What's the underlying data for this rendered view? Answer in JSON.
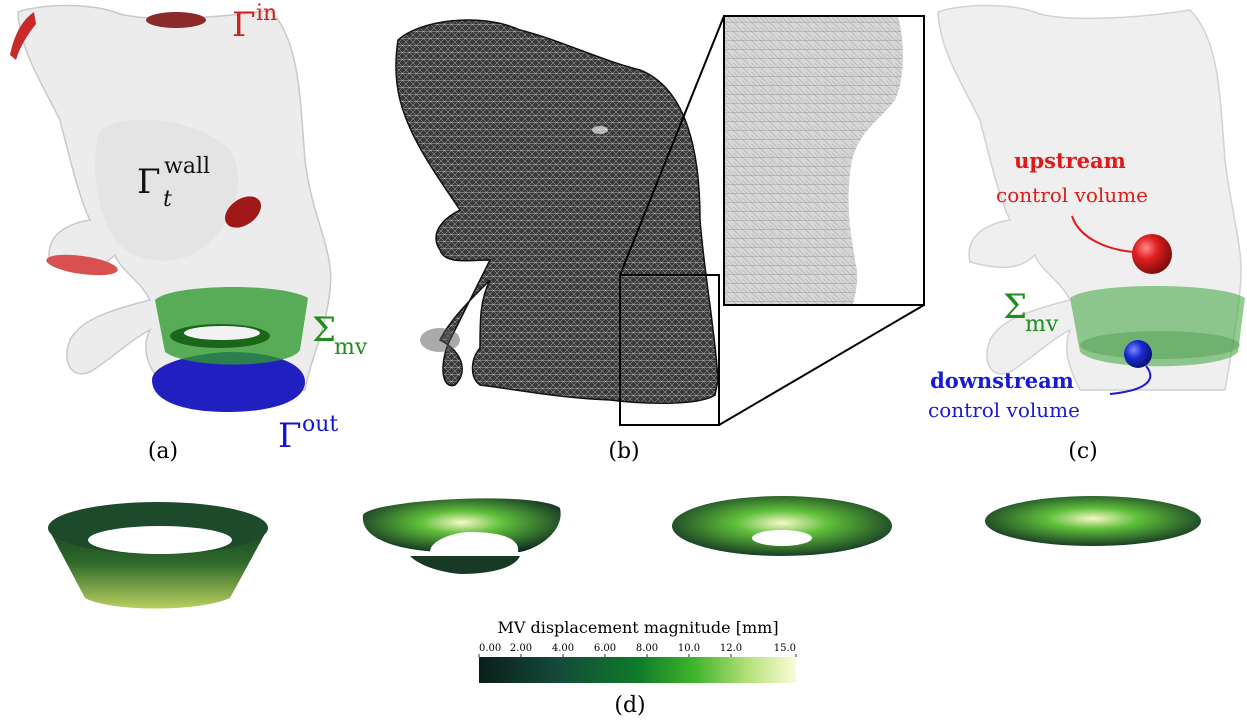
{
  "panel_a": {
    "caption": "(a)",
    "inlet_label": {
      "base": "Γ",
      "sup": "in",
      "color": "#d11f1f"
    },
    "wall_label": {
      "base": "Γ",
      "sub": "t",
      "sup": "wall",
      "color": "#111111"
    },
    "valve_label": {
      "base": "Σ",
      "sub": "mv",
      "color": "#1e8c1e"
    },
    "outlet_label": {
      "base": "Γ",
      "sup": "out",
      "color": "#1414c8"
    }
  },
  "panel_b": {
    "caption": "(b)"
  },
  "panel_c": {
    "caption": "(c)",
    "valve_label": {
      "base": "Σ",
      "sub": "mv",
      "color": "#1e8c1e"
    },
    "upstream": {
      "bold": "upstream",
      "text": "control volume",
      "color": "#e01a1a"
    },
    "downstream": {
      "bold": "downstream",
      "text": "control volume",
      "color": "#1a1ad4"
    }
  },
  "panel_d": {
    "caption": "(d)",
    "colorbar": {
      "title": "MV displacement magnitude [mm]",
      "ticks": [
        "0.00",
        "2.00",
        "4.00",
        "6.00",
        "8.00",
        "10.0",
        "12.0",
        "15.0"
      ],
      "colors": [
        "#0b1f1a",
        "#144a3a",
        "#0f7a2a",
        "#3fb52a",
        "#b6e07a",
        "#fcfcd8"
      ]
    }
  }
}
